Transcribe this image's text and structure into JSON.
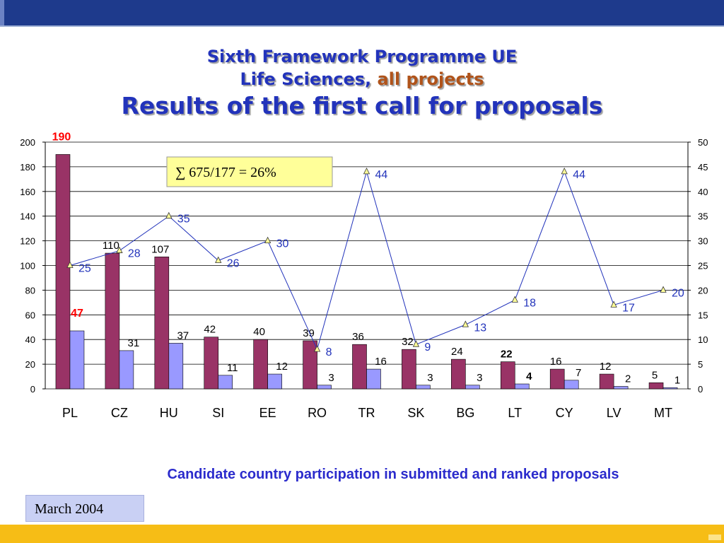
{
  "slide": {
    "title_line1": "Sixth Framework Programme UE",
    "title_line2_part1": "Life Sciences,",
    "title_line2_highlight": "all projects",
    "title_line3": "Results of the first call for proposals",
    "caption": "Candidate country participation in submitted and ranked proposals",
    "date": "March 2004"
  },
  "colors": {
    "top_bar": "#1e3a8c",
    "bottom_bar": "#f6bd16",
    "submitted_bar": "#993366",
    "ranked_bar": "#9999ff",
    "line": "#2233bb",
    "marker": "#ffff99",
    "highlight_label": "#ff0000"
  },
  "chart_data": {
    "type": "bar",
    "title": "",
    "xlabel": "",
    "ylabel": "",
    "categories": [
      "PL",
      "CZ",
      "HU",
      "SI",
      "EE",
      "RO",
      "TR",
      "SK",
      "BG",
      "LT",
      "CY",
      "LV",
      "MT"
    ],
    "series": [
      {
        "axis": "left",
        "kind": "bar",
        "values": [
          190,
          110,
          107,
          42,
          40,
          39,
          36,
          32,
          24,
          22,
          16,
          12,
          5
        ]
      },
      {
        "axis": "left",
        "kind": "bar",
        "values": [
          47,
          31,
          37,
          11,
          12,
          3,
          16,
          3,
          3,
          4,
          7,
          2,
          1
        ]
      },
      {
        "axis": "right",
        "kind": "line",
        "values": [
          25,
          28,
          35,
          26,
          30,
          8,
          44,
          9,
          13,
          18,
          44,
          17,
          20
        ]
      }
    ],
    "ylim_left": [
      0,
      200
    ],
    "yticks_left": [
      0,
      20,
      40,
      60,
      80,
      100,
      120,
      140,
      160,
      180,
      200
    ],
    "ylim_right": [
      0,
      50
    ],
    "yticks_right": [
      0,
      5,
      10,
      15,
      20,
      25,
      30,
      35,
      40,
      45,
      50
    ],
    "grid": true,
    "annotation": "∑ 675/177 = 26%"
  }
}
